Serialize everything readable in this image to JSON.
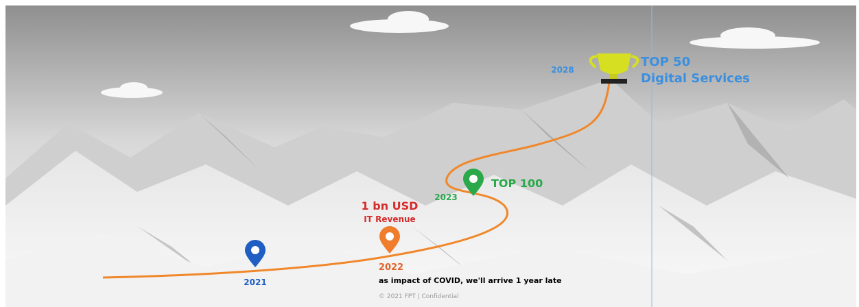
{
  "milestones": [
    {
      "year": "2021"
    },
    {
      "year": "2022",
      "title": "1 bn USD",
      "subtitle": "IT Revenue"
    },
    {
      "year": "2023",
      "title": "TOP 100"
    },
    {
      "year": "2028",
      "title": "TOP 50",
      "subtitle": "Digital Services"
    }
  ],
  "note": "as impact of COVID, we'll arrive 1 year late",
  "footer": "© 2021 FPT | Confidential"
}
